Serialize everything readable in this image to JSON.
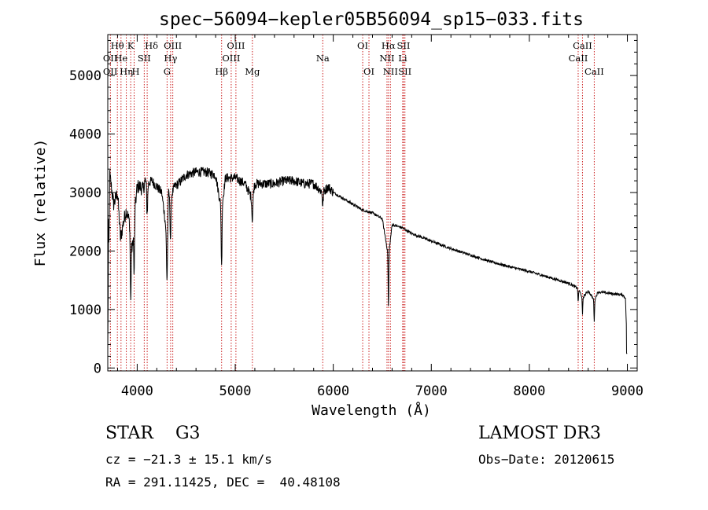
{
  "chart_data": {
    "type": "line",
    "title": "spec−56094−kepler05B56094_sp15−033.fits",
    "xlabel": "Wavelength (Å)",
    "ylabel": "Flux (relative)",
    "xlim": [
      3700,
      9100
    ],
    "ylim": [
      -50,
      5700
    ],
    "x_ticks": [
      4000,
      5000,
      6000,
      7000,
      8000,
      9000
    ],
    "x_tick_labels": [
      "4000",
      "5000",
      "6000",
      "7000",
      "8000",
      "9000"
    ],
    "y_ticks": [
      0,
      1000,
      2000,
      3000,
      4000,
      5000
    ],
    "y_tick_labels": [
      "0",
      "1000",
      "2000",
      "3000",
      "4000",
      "5000"
    ],
    "spectrum_anchors": {
      "x": [
        3700,
        3720,
        3760,
        3800,
        3830,
        3860,
        3890,
        3920,
        3950,
        3970,
        4000,
        4030,
        4060,
        4080,
        4100,
        4150,
        4200,
        4250,
        4280,
        4300,
        4320,
        4340,
        4380,
        4420,
        4500,
        4600,
        4700,
        4800,
        4860,
        4900,
        5000,
        5100,
        5170,
        5200,
        5300,
        5400,
        5500,
        5600,
        5700,
        5800,
        5893,
        5950,
        6000,
        6100,
        6200,
        6300,
        6400,
        6500,
        6563,
        6600,
        6700,
        6800,
        7000,
        7200,
        7400,
        7600,
        7800,
        8000,
        8200,
        8400,
        8498,
        8542,
        8600,
        8662,
        8700,
        8800,
        8900,
        8950,
        8980,
        9000
      ],
      "y": [
        300,
        3300,
        2800,
        3000,
        2200,
        2500,
        2700,
        2500,
        2000,
        2600,
        3100,
        3100,
        3050,
        3200,
        3150,
        3200,
        3100,
        3000,
        2600,
        2250,
        3000,
        2900,
        3100,
        3150,
        3300,
        3350,
        3350,
        3300,
        2700,
        3250,
        3250,
        3150,
        2900,
        3150,
        3150,
        3150,
        3200,
        3200,
        3150,
        3150,
        3000,
        3100,
        3000,
        2900,
        2800,
        2700,
        2650,
        2550,
        1900,
        2450,
        2400,
        2300,
        2170,
        2040,
        1930,
        1820,
        1730,
        1650,
        1550,
        1450,
        1360,
        1200,
        1320,
        1150,
        1300,
        1280,
        1260,
        1250,
        1200,
        200
      ]
    },
    "spectral_lines": [
      {
        "label": "OII",
        "wavelength": 3727,
        "row": 2,
        "align": "right"
      },
      {
        "label": "OII",
        "wavelength": 3727,
        "row": 3,
        "align": "right"
      },
      {
        "label": "Hθ",
        "wavelength": 3798,
        "row": 1,
        "align": "center"
      },
      {
        "label": "He",
        "wavelength": 3835,
        "row": 2,
        "align": "center"
      },
      {
        "label": "Hη",
        "wavelength": 3889,
        "row": 3,
        "align": "center"
      },
      {
        "label": "K",
        "wavelength": 3934,
        "row": 1,
        "align": "center"
      },
      {
        "label": "H",
        "wavelength": 3969,
        "row": 3,
        "align": "left"
      },
      {
        "label": "SII",
        "wavelength": 4072,
        "row": 2,
        "align": "center"
      },
      {
        "label": "Hδ",
        "wavelength": 4102,
        "row": 1,
        "align": "left"
      },
      {
        "label": "G",
        "wavelength": 4305,
        "row": 3,
        "align": "center"
      },
      {
        "label": "OIII",
        "wavelength": 4363,
        "row": 1,
        "align": "center"
      },
      {
        "label": "Hγ",
        "wavelength": 4341,
        "row": 2,
        "align": "center"
      },
      {
        "label": "Hβ",
        "wavelength": 4861,
        "row": 3,
        "align": "center"
      },
      {
        "label": "OIII",
        "wavelength": 4959,
        "row": 2,
        "align": "center"
      },
      {
        "label": "OIII",
        "wavelength": 5007,
        "row": 1,
        "align": "center"
      },
      {
        "label": "Mg",
        "wavelength": 5175,
        "row": 3,
        "align": "center"
      },
      {
        "label": "Na",
        "wavelength": 5893,
        "row": 2,
        "align": "center"
      },
      {
        "label": "OI",
        "wavelength": 6300,
        "row": 1,
        "align": "center"
      },
      {
        "label": "OI",
        "wavelength": 6364,
        "row": 3,
        "align": "center"
      },
      {
        "label": "Hα",
        "wavelength": 6563,
        "row": 1,
        "align": "center"
      },
      {
        "label": "NII",
        "wavelength": 6548,
        "row": 2,
        "align": "center"
      },
      {
        "label": "NII",
        "wavelength": 6583,
        "row": 3,
        "align": "center"
      },
      {
        "label": "SII",
        "wavelength": 6717,
        "row": 1,
        "align": "center"
      },
      {
        "label": "SII",
        "wavelength": 6731,
        "row": 3,
        "align": "center"
      },
      {
        "label": "Li",
        "wavelength": 6708,
        "row": 2,
        "align": "center"
      },
      {
        "label": "CaII",
        "wavelength": 8498,
        "row": 2,
        "align": "center"
      },
      {
        "label": "CaII",
        "wavelength": 8542,
        "row": 1,
        "align": "center"
      },
      {
        "label": "CaII",
        "wavelength": 8662,
        "row": 3,
        "align": "center"
      }
    ]
  },
  "info": {
    "class_line": "STAR    G3",
    "survey": "LAMOST DR3",
    "cz": "cz = −21.3 ± 15.1 km/s",
    "obs_date": "Obs−Date: 20120615",
    "coords": "RA = 291.11425, DEC =  40.48108"
  },
  "colors": {
    "line_marker": "#cc2222",
    "spectrum": "#000000",
    "axes": "#000000"
  }
}
